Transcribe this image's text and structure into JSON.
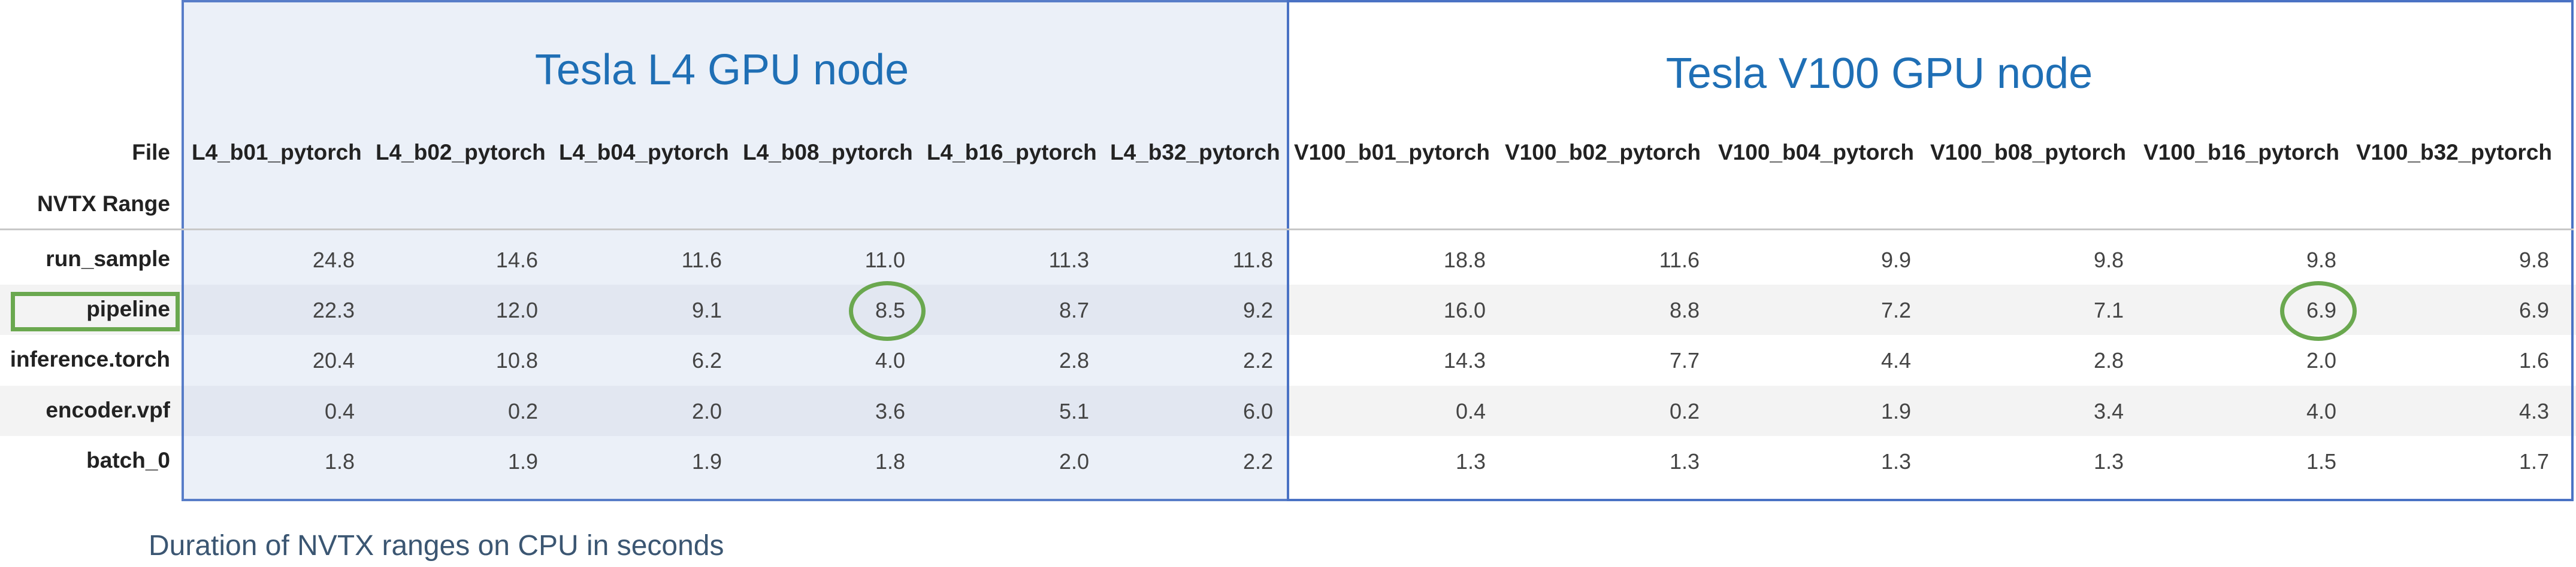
{
  "chart_data": {
    "type": "table",
    "groups": [
      {
        "title": "Tesla L4 GPU node",
        "columns": [
          "L4_b01_pytorch",
          "L4_b02_pytorch",
          "L4_b04_pytorch",
          "L4_b08_pytorch",
          "L4_b16_pytorch",
          "L4_b32_pytorch"
        ]
      },
      {
        "title": "Tesla V100 GPU node",
        "columns": [
          "V100_b01_pytorch",
          "V100_b02_pytorch",
          "V100_b04_pytorch",
          "V100_b08_pytorch",
          "V100_b16_pytorch",
          "V100_b32_pytorch"
        ]
      }
    ],
    "header_file_label": "File",
    "header_range_label": "NVTX Range",
    "rows": [
      {
        "label": "run_sample",
        "values": [
          "24.8",
          "14.6",
          "11.6",
          "11.0",
          "11.3",
          "11.8",
          "18.8",
          "11.6",
          "9.9",
          "9.8",
          "9.8",
          "9.8"
        ]
      },
      {
        "label": "pipeline",
        "values": [
          "22.3",
          "12.0",
          "9.1",
          "8.5",
          "8.7",
          "9.2",
          "16.0",
          "8.8",
          "7.2",
          "7.1",
          "6.9",
          "6.9"
        ]
      },
      {
        "label": "inference.torch",
        "values": [
          "20.4",
          "10.8",
          "6.2",
          "4.0",
          "2.8",
          "2.2",
          "14.3",
          "7.7",
          "4.4",
          "2.8",
          "2.0",
          "1.6"
        ]
      },
      {
        "label": "encoder.vpf",
        "values": [
          "0.4",
          "0.2",
          "2.0",
          "3.6",
          "5.1",
          "6.0",
          "0.4",
          "0.2",
          "1.9",
          "3.4",
          "4.0",
          "4.3"
        ]
      },
      {
        "label": "batch_0",
        "values": [
          "1.8",
          "1.9",
          "1.9",
          "1.8",
          "2.0",
          "2.2",
          "1.3",
          "1.3",
          "1.3",
          "1.3",
          "1.5",
          "1.7"
        ]
      }
    ],
    "highlighted_row": "pipeline",
    "circled_cells": [
      {
        "row": "pipeline",
        "column": "L4_b08_pytorch"
      },
      {
        "row": "pipeline",
        "column": "V100_b16_pytorch"
      }
    ],
    "highlight_color": "#6aa84f",
    "group_border_color": "#4a72c4",
    "group_title_color": "#1f6fb5",
    "l4_background": "#eaeff8"
  },
  "caption": "Duration of NVTX ranges on CPU in seconds"
}
